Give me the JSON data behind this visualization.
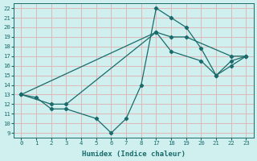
{
  "xlabel": "Humidex (Indice chaleur)",
  "bg_color": "#cff0ef",
  "grid_color": "#e0b8b8",
  "line_color": "#1a6b6b",
  "ylim": [
    8.5,
    22.5
  ],
  "yticks": [
    9,
    10,
    11,
    12,
    13,
    14,
    15,
    16,
    17,
    18,
    19,
    20,
    21,
    22
  ],
  "xtick_labels": [
    "0",
    "1",
    "2",
    "3",
    "4",
    "5",
    "6",
    "7",
    "8",
    "17",
    "18",
    "19",
    "20",
    "21",
    "22",
    "23"
  ],
  "lines": [
    {
      "xvals": [
        0,
        1,
        2,
        3,
        5,
        6,
        7,
        8,
        17,
        18,
        19,
        20,
        21,
        22,
        23
      ],
      "y": [
        13,
        12.7,
        11.5,
        11.5,
        10.5,
        9,
        10.5,
        14,
        22,
        21,
        20,
        17.8,
        15,
        16,
        17
      ]
    },
    {
      "xvals": [
        0,
        2,
        3,
        17,
        18,
        20,
        21,
        22,
        23
      ],
      "y": [
        13,
        12,
        12,
        19.5,
        17.5,
        16.5,
        15,
        16.5,
        17
      ]
    },
    {
      "xvals": [
        0,
        17,
        18,
        19,
        22,
        23
      ],
      "y": [
        13,
        19.5,
        19.0,
        19.0,
        17,
        17
      ]
    }
  ]
}
